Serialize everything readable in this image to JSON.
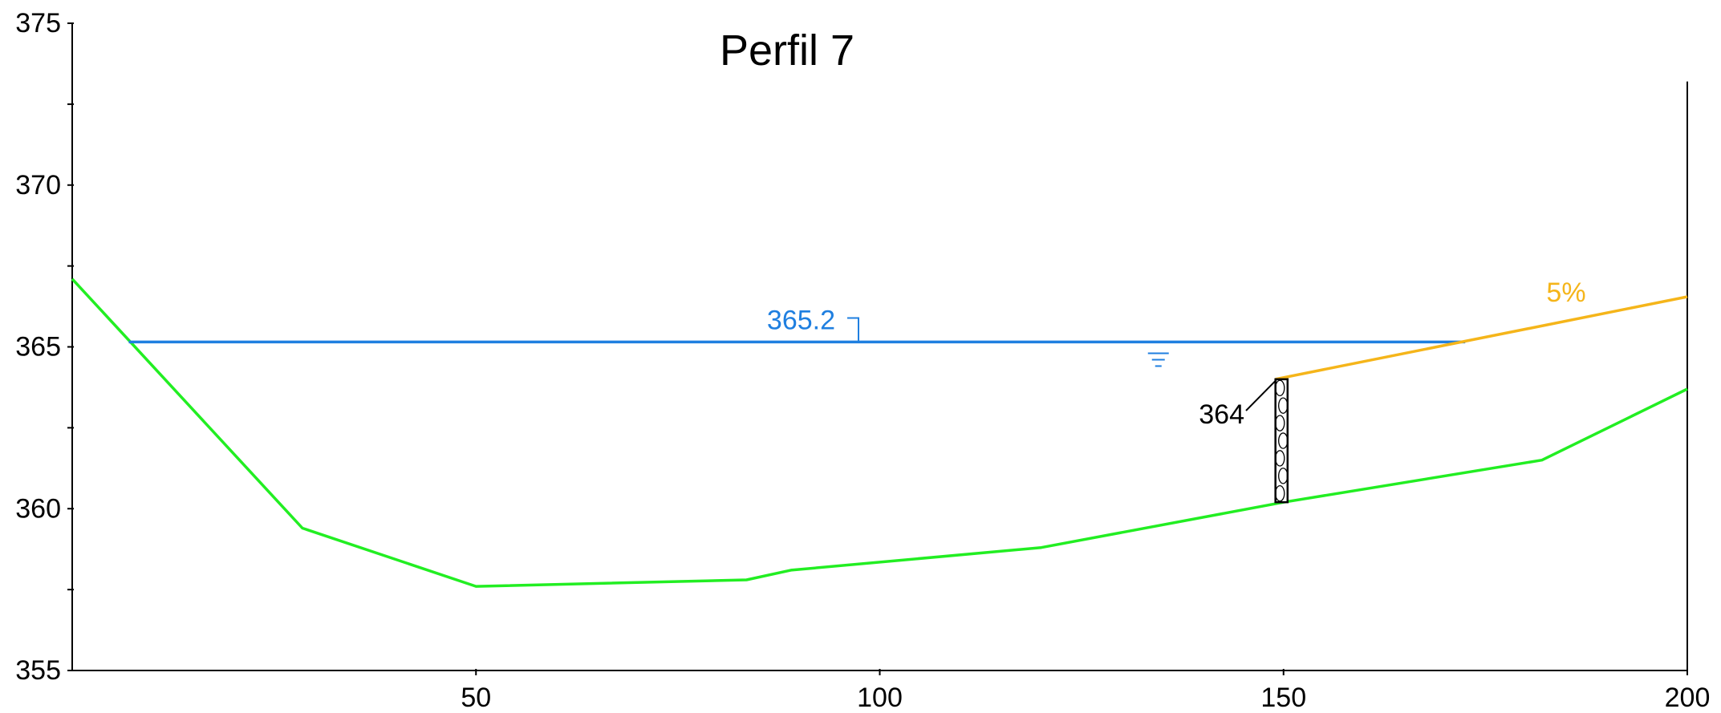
{
  "chart_data": {
    "type": "line",
    "title": "Perfil 7",
    "xlabel": "",
    "ylabel": "",
    "xlim": [
      0,
      200
    ],
    "ylim": [
      355,
      375
    ],
    "x_ticks": [
      50,
      100,
      150,
      200
    ],
    "y_ticks": [
      355,
      360,
      365,
      370,
      375
    ],
    "grid": false,
    "colors": {
      "terrain": "#22ee22",
      "water": "#1f7fe0",
      "slope": "#f5b51a",
      "axis": "#000000"
    },
    "series": [
      {
        "key": "terrain",
        "points": [
          [
            0,
            367.1
          ],
          [
            28.5,
            359.4
          ],
          [
            50,
            357.6
          ],
          [
            83.5,
            357.8
          ],
          [
            89,
            358.1
          ],
          [
            120,
            358.8
          ],
          [
            150,
            360.2
          ],
          [
            182,
            361.5
          ],
          [
            200,
            363.7
          ]
        ]
      },
      {
        "key": "water",
        "points": [
          [
            7,
            365.15
          ],
          [
            172.5,
            365.15
          ]
        ]
      },
      {
        "key": "slope",
        "points": [
          [
            149,
            364.0
          ],
          [
            200,
            366.55
          ]
        ]
      }
    ],
    "annotations": {
      "water_level": "365.2",
      "slope_label": "5%",
      "wall_top": "364"
    },
    "wall": {
      "x": 149,
      "x_end": 150.5,
      "y_bottom": 360.2,
      "y_top": 364.0
    },
    "water_symbol_x": 134.5,
    "right_line": {
      "x": 200,
      "y_bottom": 355,
      "y_top": 373.2
    }
  }
}
